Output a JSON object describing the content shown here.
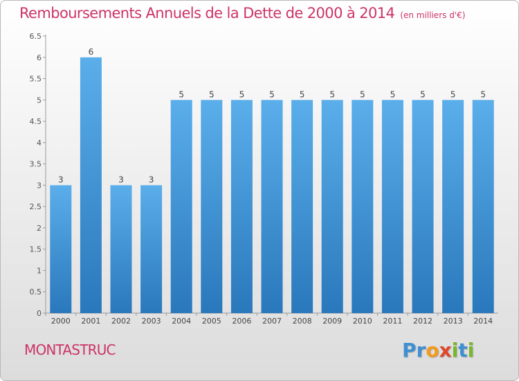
{
  "title": "Remboursements Annuels de la Dette de 2000 à 2014",
  "unit": "(en milliers d'€)",
  "commune": "MONTASTRUC",
  "brand": {
    "p": "Pr",
    "o": "o",
    "x": "x",
    "i": "i",
    "t": "t",
    "i2": "i"
  },
  "colors": {
    "bar_light": "#5aaeea",
    "bar_dark": "#2a78bc",
    "title": "#cc3366"
  },
  "chart_data": {
    "type": "bar",
    "title": "Remboursements Annuels de la Dette de 2000 à 2014",
    "xlabel": "",
    "ylabel": "",
    "categories": [
      "2000",
      "2001",
      "2002",
      "2003",
      "2004",
      "2005",
      "2006",
      "2007",
      "2008",
      "2009",
      "2010",
      "2011",
      "2012",
      "2013",
      "2014"
    ],
    "values": [
      3,
      6,
      3,
      3,
      5,
      5,
      5,
      5,
      5,
      5,
      5,
      5,
      5,
      5,
      5
    ],
    "ylim": [
      0,
      6.5
    ],
    "yticks": [
      "0",
      "0.5",
      "1",
      "1.5",
      "2",
      "2.5",
      "3",
      "3.5",
      "4",
      "4.5",
      "5",
      "5.5",
      "6",
      "6.5"
    ],
    "grid": false,
    "legend": "none"
  }
}
